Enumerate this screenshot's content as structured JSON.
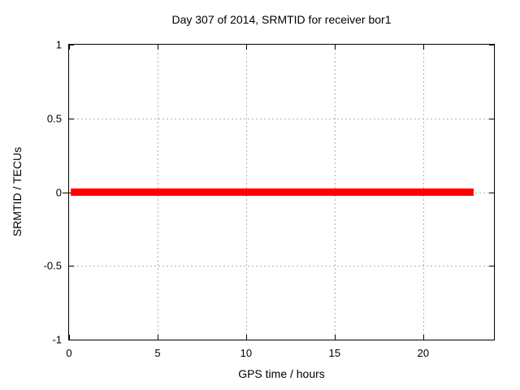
{
  "chart_data": {
    "type": "line",
    "title": "Day 307 of 2014, SRMTID for receiver bor1",
    "xlabel": "GPS time / hours",
    "ylabel": "SRMTID / TECUs",
    "xlim": [
      0,
      24
    ],
    "ylim": [
      -1,
      1
    ],
    "xticks": [
      0,
      5,
      10,
      15,
      20
    ],
    "yticks": [
      -1,
      -0.5,
      0,
      0.5,
      1
    ],
    "grid": true,
    "legend": "none",
    "background_color": "#ffffff",
    "border_color": "#000000",
    "grid_color": "#b0b0b0",
    "series": [
      {
        "name": "SRMTID",
        "color": "#ff0000",
        "linewidth": 9,
        "x": [
          0.1,
          22.85
        ],
        "y": [
          0,
          0
        ]
      }
    ]
  }
}
